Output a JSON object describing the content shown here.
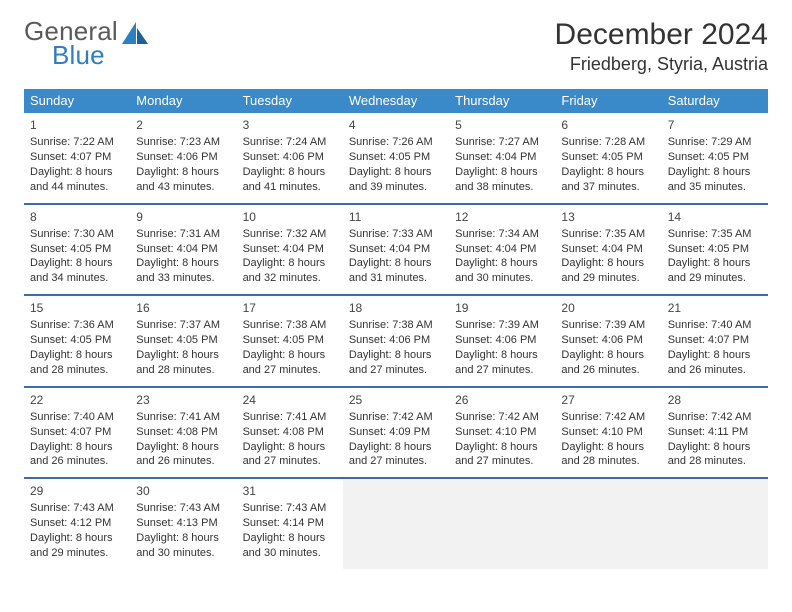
{
  "logo": {
    "top": "General",
    "bottom": "Blue"
  },
  "header": {
    "title": "December 2024",
    "location": "Friedberg, Styria, Austria"
  },
  "colors": {
    "header_bg": "#3a89c9",
    "header_text": "#ffffff",
    "week_divider": "#3a6fa0",
    "blank_bg": "#f2f2f2",
    "body_text": "#333333",
    "logo_top": "#5a5a5a",
    "logo_bottom": "#2e7fc1"
  },
  "weekdays": [
    "Sunday",
    "Monday",
    "Tuesday",
    "Wednesday",
    "Thursday",
    "Friday",
    "Saturday"
  ],
  "weeks": [
    [
      {
        "n": "1",
        "sr": "Sunrise: 7:22 AM",
        "ss": "Sunset: 4:07 PM",
        "d1": "Daylight: 8 hours",
        "d2": "and 44 minutes."
      },
      {
        "n": "2",
        "sr": "Sunrise: 7:23 AM",
        "ss": "Sunset: 4:06 PM",
        "d1": "Daylight: 8 hours",
        "d2": "and 43 minutes."
      },
      {
        "n": "3",
        "sr": "Sunrise: 7:24 AM",
        "ss": "Sunset: 4:06 PM",
        "d1": "Daylight: 8 hours",
        "d2": "and 41 minutes."
      },
      {
        "n": "4",
        "sr": "Sunrise: 7:26 AM",
        "ss": "Sunset: 4:05 PM",
        "d1": "Daylight: 8 hours",
        "d2": "and 39 minutes."
      },
      {
        "n": "5",
        "sr": "Sunrise: 7:27 AM",
        "ss": "Sunset: 4:04 PM",
        "d1": "Daylight: 8 hours",
        "d2": "and 38 minutes."
      },
      {
        "n": "6",
        "sr": "Sunrise: 7:28 AM",
        "ss": "Sunset: 4:05 PM",
        "d1": "Daylight: 8 hours",
        "d2": "and 37 minutes."
      },
      {
        "n": "7",
        "sr": "Sunrise: 7:29 AM",
        "ss": "Sunset: 4:05 PM",
        "d1": "Daylight: 8 hours",
        "d2": "and 35 minutes."
      }
    ],
    [
      {
        "n": "8",
        "sr": "Sunrise: 7:30 AM",
        "ss": "Sunset: 4:05 PM",
        "d1": "Daylight: 8 hours",
        "d2": "and 34 minutes."
      },
      {
        "n": "9",
        "sr": "Sunrise: 7:31 AM",
        "ss": "Sunset: 4:04 PM",
        "d1": "Daylight: 8 hours",
        "d2": "and 33 minutes."
      },
      {
        "n": "10",
        "sr": "Sunrise: 7:32 AM",
        "ss": "Sunset: 4:04 PM",
        "d1": "Daylight: 8 hours",
        "d2": "and 32 minutes."
      },
      {
        "n": "11",
        "sr": "Sunrise: 7:33 AM",
        "ss": "Sunset: 4:04 PM",
        "d1": "Daylight: 8 hours",
        "d2": "and 31 minutes."
      },
      {
        "n": "12",
        "sr": "Sunrise: 7:34 AM",
        "ss": "Sunset: 4:04 PM",
        "d1": "Daylight: 8 hours",
        "d2": "and 30 minutes."
      },
      {
        "n": "13",
        "sr": "Sunrise: 7:35 AM",
        "ss": "Sunset: 4:04 PM",
        "d1": "Daylight: 8 hours",
        "d2": "and 29 minutes."
      },
      {
        "n": "14",
        "sr": "Sunrise: 7:35 AM",
        "ss": "Sunset: 4:05 PM",
        "d1": "Daylight: 8 hours",
        "d2": "and 29 minutes."
      }
    ],
    [
      {
        "n": "15",
        "sr": "Sunrise: 7:36 AM",
        "ss": "Sunset: 4:05 PM",
        "d1": "Daylight: 8 hours",
        "d2": "and 28 minutes."
      },
      {
        "n": "16",
        "sr": "Sunrise: 7:37 AM",
        "ss": "Sunset: 4:05 PM",
        "d1": "Daylight: 8 hours",
        "d2": "and 28 minutes."
      },
      {
        "n": "17",
        "sr": "Sunrise: 7:38 AM",
        "ss": "Sunset: 4:05 PM",
        "d1": "Daylight: 8 hours",
        "d2": "and 27 minutes."
      },
      {
        "n": "18",
        "sr": "Sunrise: 7:38 AM",
        "ss": "Sunset: 4:06 PM",
        "d1": "Daylight: 8 hours",
        "d2": "and 27 minutes."
      },
      {
        "n": "19",
        "sr": "Sunrise: 7:39 AM",
        "ss": "Sunset: 4:06 PM",
        "d1": "Daylight: 8 hours",
        "d2": "and 27 minutes."
      },
      {
        "n": "20",
        "sr": "Sunrise: 7:39 AM",
        "ss": "Sunset: 4:06 PM",
        "d1": "Daylight: 8 hours",
        "d2": "and 26 minutes."
      },
      {
        "n": "21",
        "sr": "Sunrise: 7:40 AM",
        "ss": "Sunset: 4:07 PM",
        "d1": "Daylight: 8 hours",
        "d2": "and 26 minutes."
      }
    ],
    [
      {
        "n": "22",
        "sr": "Sunrise: 7:40 AM",
        "ss": "Sunset: 4:07 PM",
        "d1": "Daylight: 8 hours",
        "d2": "and 26 minutes."
      },
      {
        "n": "23",
        "sr": "Sunrise: 7:41 AM",
        "ss": "Sunset: 4:08 PM",
        "d1": "Daylight: 8 hours",
        "d2": "and 26 minutes."
      },
      {
        "n": "24",
        "sr": "Sunrise: 7:41 AM",
        "ss": "Sunset: 4:08 PM",
        "d1": "Daylight: 8 hours",
        "d2": "and 27 minutes."
      },
      {
        "n": "25",
        "sr": "Sunrise: 7:42 AM",
        "ss": "Sunset: 4:09 PM",
        "d1": "Daylight: 8 hours",
        "d2": "and 27 minutes."
      },
      {
        "n": "26",
        "sr": "Sunrise: 7:42 AM",
        "ss": "Sunset: 4:10 PM",
        "d1": "Daylight: 8 hours",
        "d2": "and 27 minutes."
      },
      {
        "n": "27",
        "sr": "Sunrise: 7:42 AM",
        "ss": "Sunset: 4:10 PM",
        "d1": "Daylight: 8 hours",
        "d2": "and 28 minutes."
      },
      {
        "n": "28",
        "sr": "Sunrise: 7:42 AM",
        "ss": "Sunset: 4:11 PM",
        "d1": "Daylight: 8 hours",
        "d2": "and 28 minutes."
      }
    ],
    [
      {
        "n": "29",
        "sr": "Sunrise: 7:43 AM",
        "ss": "Sunset: 4:12 PM",
        "d1": "Daylight: 8 hours",
        "d2": "and 29 minutes."
      },
      {
        "n": "30",
        "sr": "Sunrise: 7:43 AM",
        "ss": "Sunset: 4:13 PM",
        "d1": "Daylight: 8 hours",
        "d2": "and 30 minutes."
      },
      {
        "n": "31",
        "sr": "Sunrise: 7:43 AM",
        "ss": "Sunset: 4:14 PM",
        "d1": "Daylight: 8 hours",
        "d2": "and 30 minutes."
      },
      {
        "blank": true
      },
      {
        "blank": true
      },
      {
        "blank": true
      },
      {
        "blank": true
      }
    ]
  ]
}
